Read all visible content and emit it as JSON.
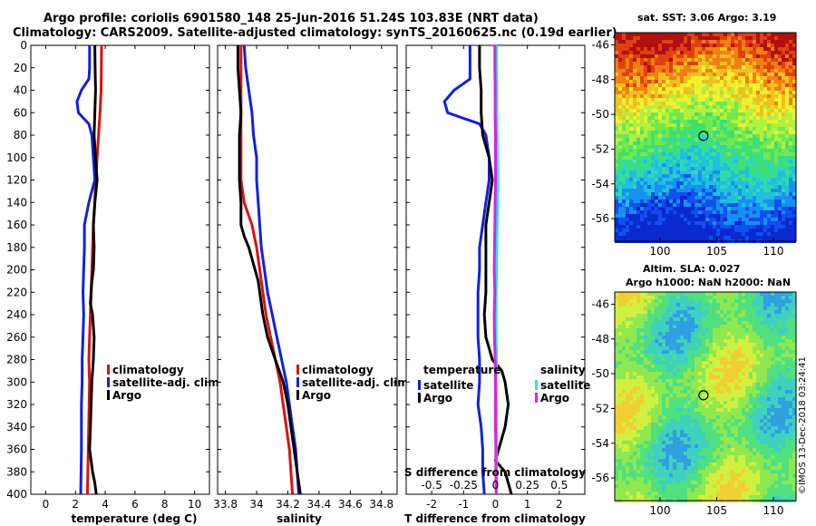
{
  "header": {
    "title_line1": "Argo profile: coriolis 6901580_148 25-Jun-2016 51.24S 103.83E (NRT data)",
    "title_line2": "Climatology: CARS2009. Satellite-adjusted climatology: synTS_20160625.nc (0.19d earlier)"
  },
  "colors": {
    "climatology": "#e01010",
    "satellite": "#1020e0",
    "argo": "#000000",
    "sat_salinity": "#18e8f0",
    "argo_salinity": "#e020e0",
    "map_marker": "#000000"
  },
  "chart_data": [
    {
      "type": "line",
      "id": "temperature",
      "xlabel": "temperature (deg C)",
      "ylabel": "",
      "xlim": [
        -1,
        11
      ],
      "ylim": [
        0,
        400
      ],
      "y_inverted": true,
      "xticks": [
        "0",
        "2",
        "4",
        "6",
        "8",
        "10"
      ],
      "xtick_values": [
        0,
        2,
        4,
        6,
        8,
        10
      ],
      "yticks": [
        "0",
        "20",
        "40",
        "60",
        "80",
        "100",
        "120",
        "140",
        "160",
        "180",
        "200",
        "220",
        "240",
        "260",
        "280",
        "300",
        "320",
        "340",
        "360",
        "380",
        "400"
      ],
      "ytick_values": [
        0,
        20,
        40,
        60,
        80,
        100,
        120,
        140,
        160,
        180,
        200,
        220,
        240,
        260,
        280,
        300,
        320,
        340,
        360,
        380,
        400
      ],
      "legend": [
        "climatology",
        "satellite-adj. clim.",
        "Argo"
      ],
      "legend_colors": [
        "#e01010",
        "#1020e0",
        "#000000"
      ],
      "series": [
        {
          "name": "climatology",
          "color": "#e01010",
          "x": [
            3.75,
            3.74,
            3.72,
            3.65,
            3.55,
            3.45,
            3.35,
            3.3,
            3.2,
            3.15,
            3.1,
            3.05,
            3.0,
            2.95,
            2.9,
            2.95,
            2.8
          ],
          "y": [
            0,
            20,
            40,
            60,
            80,
            100,
            120,
            140,
            160,
            180,
            200,
            220,
            240,
            260,
            280,
            300,
            400
          ]
        },
        {
          "name": "satellite-adj. clim.",
          "color": "#1020e0",
          "x": [
            2.95,
            2.95,
            2.9,
            2.4,
            2.1,
            2.2,
            2.9,
            3.1,
            3.2,
            3.3,
            2.9,
            2.6,
            2.6,
            2.55,
            2.5,
            2.55,
            2.5,
            2.45,
            2.45,
            2.4,
            2.4,
            2.35
          ],
          "y": [
            0,
            20,
            30,
            40,
            50,
            60,
            70,
            80,
            100,
            120,
            140,
            160,
            180,
            200,
            220,
            240,
            260,
            280,
            300,
            320,
            360,
            400
          ]
        },
        {
          "name": "Argo",
          "color": "#000000",
          "x": [
            3.3,
            3.32,
            3.35,
            3.3,
            3.25,
            3.35,
            3.45,
            3.3,
            3.2,
            3.25,
            3.2,
            3.1,
            3.05,
            3.0,
            3.15,
            3.25,
            3.2,
            3.1,
            3.05,
            3.0,
            2.95,
            3.05,
            3.15,
            3.3,
            3.35,
            3.4
          ],
          "y": [
            0,
            20,
            40,
            60,
            80,
            100,
            120,
            140,
            160,
            180,
            200,
            210,
            220,
            230,
            240,
            260,
            280,
            300,
            320,
            340,
            360,
            370,
            380,
            390,
            395,
            400
          ]
        }
      ]
    },
    {
      "type": "line",
      "id": "salinity",
      "xlabel": "salinity",
      "ylabel": "",
      "xlim": [
        33.75,
        34.9
      ],
      "ylim": [
        0,
        400
      ],
      "y_inverted": true,
      "xticks": [
        "33.8",
        "34",
        "34.2",
        "34.4",
        "34.6",
        "34.8"
      ],
      "xtick_values": [
        33.8,
        34.0,
        34.2,
        34.4,
        34.6,
        34.8
      ],
      "legend": [
        "climatology",
        "satellite-adj. clim.",
        "Argo"
      ],
      "legend_colors": [
        "#e01010",
        "#1020e0",
        "#000000"
      ],
      "series": [
        {
          "name": "climatology",
          "color": "#e01010",
          "x": [
            33.9,
            33.9,
            33.9,
            33.9,
            33.9,
            33.9,
            33.9,
            33.92,
            33.97,
            34.0,
            34.02,
            34.04,
            34.06,
            34.09,
            34.12,
            34.15,
            34.17,
            34.19,
            34.21,
            34.22,
            34.23
          ],
          "y": [
            0,
            20,
            40,
            60,
            80,
            100,
            120,
            140,
            160,
            180,
            200,
            220,
            240,
            260,
            280,
            300,
            320,
            340,
            360,
            380,
            400
          ]
        },
        {
          "name": "satellite-adj. clim.",
          "color": "#1020e0",
          "x": [
            33.92,
            33.93,
            33.95,
            33.97,
            33.98,
            34.0,
            34.0,
            34.01,
            34.02,
            34.03,
            34.05,
            34.07,
            34.1,
            34.13,
            34.16,
            34.19,
            34.21,
            34.23,
            34.25,
            34.26,
            34.27
          ],
          "y": [
            0,
            20,
            40,
            60,
            80,
            100,
            120,
            140,
            160,
            180,
            200,
            220,
            240,
            260,
            280,
            300,
            320,
            340,
            360,
            380,
            400
          ]
        },
        {
          "name": "Argo",
          "color": "#000000",
          "x": [
            33.88,
            33.88,
            33.89,
            33.9,
            33.89,
            33.89,
            33.89,
            33.9,
            33.9,
            33.92,
            33.95,
            33.97,
            33.99,
            34.01,
            34.02,
            34.04,
            34.07,
            34.12,
            34.17,
            34.2,
            34.22,
            34.24,
            34.26,
            34.28
          ],
          "y": [
            0,
            20,
            40,
            60,
            80,
            100,
            120,
            140,
            160,
            170,
            180,
            190,
            200,
            210,
            220,
            240,
            260,
            280,
            300,
            320,
            340,
            360,
            380,
            400
          ]
        }
      ]
    },
    {
      "type": "line",
      "id": "difference",
      "xlabel": "T difference from climatology",
      "secondary_xlabel": "S difference from climatology",
      "xlim": [
        -2.8,
        2.8
      ],
      "ylim": [
        0,
        400
      ],
      "y_inverted": true,
      "xticks": [
        "-2",
        "-1",
        "0",
        "1",
        "2"
      ],
      "xtick_values": [
        -2,
        -1,
        0,
        1,
        2
      ],
      "secondary_xticks": [
        "-0.5",
        "-0.25",
        "0",
        "0.25",
        "0.5"
      ],
      "secondary_xtick_values": [
        -0.5,
        -0.25,
        0,
        0.25,
        0.5
      ],
      "legend_groups": [
        {
          "heading": "temperature",
          "entries": [
            "satellite",
            "Argo"
          ],
          "colors": [
            "#1020e0",
            "#000000"
          ]
        },
        {
          "heading": "salinity",
          "entries": [
            "satellite",
            "Argo"
          ],
          "colors": [
            "#18e8f0",
            "#e020e0"
          ]
        }
      ],
      "series": [
        {
          "name": "temperature satellite",
          "color": "#1020e0",
          "x": [
            -0.8,
            -0.8,
            -0.8,
            -1.3,
            -1.6,
            -1.5,
            -0.5,
            -0.3,
            -0.2,
            -0.2,
            -0.3,
            -0.4,
            -0.5,
            -0.5,
            -0.55,
            -0.55,
            -0.55,
            -0.5,
            -0.5,
            -0.55,
            -0.45,
            -0.4,
            -0.4,
            -0.35
          ],
          "y": [
            0,
            20,
            30,
            40,
            50,
            60,
            70,
            80,
            100,
            120,
            140,
            160,
            180,
            200,
            220,
            240,
            260,
            280,
            300,
            320,
            340,
            360,
            380,
            400
          ]
        },
        {
          "name": "temperature Argo",
          "color": "#000000",
          "x": [
            -0.5,
            -0.5,
            -0.45,
            -0.45,
            -0.4,
            -0.2,
            -0.1,
            -0.2,
            -0.3,
            -0.3,
            -0.3,
            -0.3,
            -0.35,
            -0.3,
            -0.2,
            -0.1,
            0.2,
            0.3,
            0.35,
            0.4,
            0.3,
            0.1,
            0.0,
            0.3,
            0.5
          ],
          "y": [
            0,
            20,
            40,
            60,
            80,
            100,
            120,
            140,
            160,
            180,
            200,
            220,
            240,
            260,
            270,
            280,
            290,
            300,
            310,
            320,
            340,
            360,
            370,
            380,
            400
          ]
        },
        {
          "name": "salinity satellite",
          "color": "#18e8f0",
          "x": [
            0.03,
            0.03,
            0.04,
            0.04,
            0.05,
            0.06,
            0.07,
            0.06,
            0.05,
            0.04,
            0.03,
            0.02,
            0.01,
            0.02,
            0.03,
            0.02,
            0.03,
            0.04,
            0.03,
            0.03,
            0.04
          ],
          "y": [
            0,
            20,
            40,
            60,
            80,
            100,
            120,
            140,
            160,
            180,
            200,
            220,
            240,
            260,
            280,
            300,
            320,
            340,
            360,
            380,
            400
          ]
        },
        {
          "name": "salinity Argo",
          "color": "#e020e0",
          "x": [
            -0.02,
            -0.02,
            -0.01,
            -0.01,
            0.0,
            0.0,
            0.0,
            -0.01,
            -0.02,
            -0.03,
            -0.04,
            -0.02,
            -0.04,
            -0.03,
            -0.01,
            0.0,
            0.0,
            0.0,
            0.01,
            0.01,
            0.02
          ],
          "y": [
            0,
            20,
            40,
            60,
            80,
            100,
            120,
            140,
            160,
            180,
            200,
            220,
            240,
            260,
            280,
            300,
            320,
            340,
            360,
            380,
            400
          ]
        }
      ]
    },
    {
      "type": "heatmap",
      "id": "sst_map",
      "title": "sat. SST: 3.06 Argo: 3.19",
      "xticks": [
        "100",
        "105",
        "110"
      ],
      "xtick_values": [
        100,
        105,
        110
      ],
      "yticks": [
        "-46",
        "-48",
        "-50",
        "-52",
        "-54",
        "-56"
      ],
      "ytick_values": [
        -46,
        -48,
        -50,
        -52,
        -54,
        -56
      ],
      "xlim": [
        96,
        112
      ],
      "ylim": [
        -57.3,
        -45.3
      ],
      "marker": {
        "lon": 103.83,
        "lat": -51.24
      }
    },
    {
      "type": "heatmap",
      "id": "sla_map",
      "title": "Altim. SLA: 0.027",
      "subtitle": "Argo h1000: NaN h2000: NaN",
      "xticks": [
        "100",
        "105",
        "110"
      ],
      "xtick_values": [
        100,
        105,
        110
      ],
      "yticks": [
        "-46",
        "-48",
        "-50",
        "-52",
        "-54",
        "-56"
      ],
      "ytick_values": [
        -46,
        -48,
        -50,
        -52,
        -54,
        -56
      ],
      "xlim": [
        96,
        112
      ],
      "ylim": [
        -57.3,
        -45.3
      ],
      "marker": {
        "lon": 103.83,
        "lat": -51.24
      }
    }
  ],
  "footer": {
    "stamp": "©IMOS 13-Dec-2018 03:24:41"
  }
}
